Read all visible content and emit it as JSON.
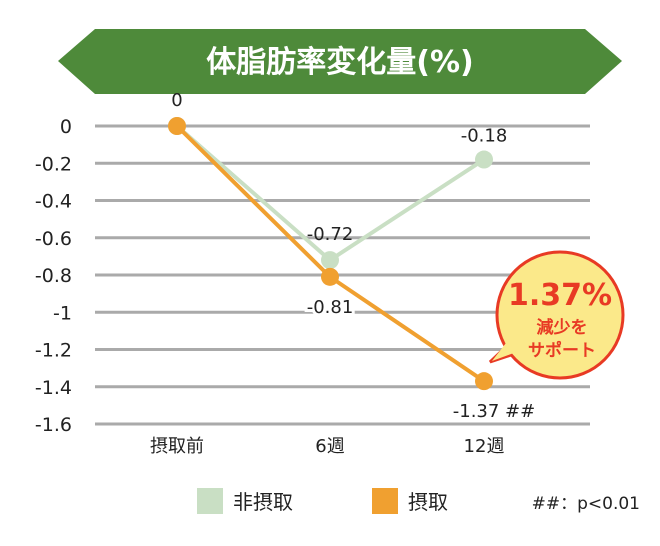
{
  "chart_data": {
    "type": "line",
    "title": "体脂肪率変化量(%)",
    "categories": [
      "摂取前",
      "6週",
      "12週"
    ],
    "ylim": [
      -1.6,
      0
    ],
    "yticks": [
      "0",
      "-0.2",
      "-0.4",
      "-0.6",
      "-0.8",
      "-1",
      "-1.2",
      "-1.4",
      "-1.6"
    ],
    "grid": true,
    "legend_position": "bottom",
    "series": [
      {
        "name": "非摂取",
        "values": [
          0,
          -0.72,
          -0.18
        ],
        "labels": [
          "",
          "-0.72",
          "-0.18"
        ],
        "color": "#c9dfc4"
      },
      {
        "name": "摂取",
        "values": [
          0,
          -0.81,
          -1.37
        ],
        "labels": [
          "0",
          "-0.81",
          "-1.37 ##"
        ],
        "color": "#f0a030"
      }
    ],
    "callout": {
      "value": "1.37%",
      "line1": "減少を",
      "line2": "サポート",
      "fill": "#fbe98a",
      "border": "#e83a24"
    },
    "footnote": "##：p<0.01",
    "title_color": "#4e8a3a"
  }
}
